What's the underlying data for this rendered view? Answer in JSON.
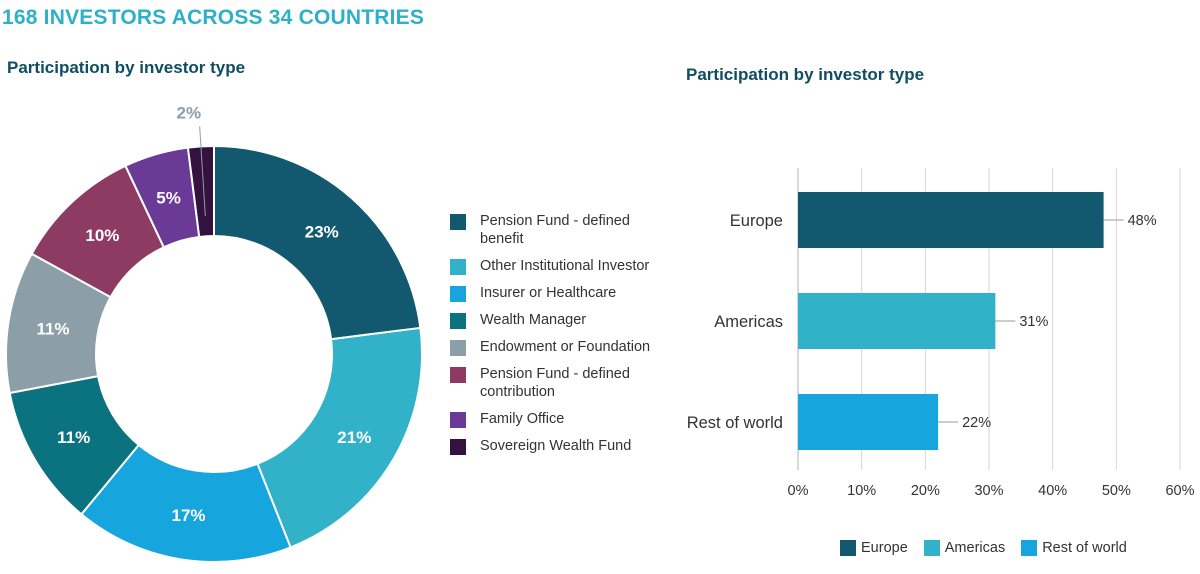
{
  "header": {
    "title": "168 INVESTORS ACROSS 34 COUNTRIES"
  },
  "chart_data": [
    {
      "type": "pie",
      "title": "Participation by investor type",
      "donut": true,
      "slices": [
        {
          "label": "Pension Fund - defined benefit",
          "value": 23,
          "display": "23%",
          "color": "#125970"
        },
        {
          "label": "Other Institutional Investor",
          "value": 21,
          "display": "21%",
          "color": "#32b2c9"
        },
        {
          "label": "Insurer or Healthcare",
          "value": 17,
          "display": "17%",
          "color": "#17a5dd"
        },
        {
          "label": "Wealth Manager",
          "value": 11,
          "display": "11%",
          "color": "#0b737f"
        },
        {
          "label": "Endowment or Foundation",
          "value": 11,
          "display": "11%",
          "color": "#8c9ea8"
        },
        {
          "label": "Pension Fund - defined contribution",
          "value": 10,
          "display": "10%",
          "color": "#8d3b62"
        },
        {
          "label": "Family Office",
          "value": 5,
          "display": "5%",
          "color": "#6b3a97"
        },
        {
          "label": "Sovereign Wealth Fund",
          "value": 2,
          "display": "2%",
          "color": "#34113f"
        }
      ],
      "legend_position": "right"
    },
    {
      "type": "bar",
      "orientation": "horizontal",
      "title": "Participation by investor type",
      "categories": [
        "Europe",
        "Americas",
        "Rest of world"
      ],
      "values": [
        48,
        31,
        22
      ],
      "value_labels": [
        "48%",
        "31%",
        "22%"
      ],
      "colors": [
        "#125970",
        "#32b2c9",
        "#17a5dd"
      ],
      "xlim": [
        0,
        60
      ],
      "xticks": [
        "0%",
        "10%",
        "20%",
        "30%",
        "40%",
        "50%",
        "60%"
      ],
      "grid": true,
      "legend": [
        "Europe",
        "Americas",
        "Rest of world"
      ],
      "legend_position": "bottom"
    }
  ]
}
